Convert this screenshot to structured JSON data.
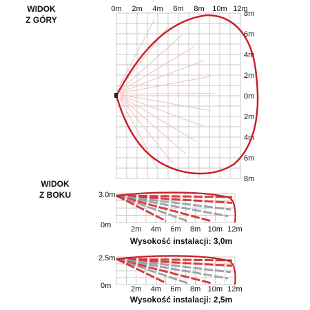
{
  "top_view": {
    "heading_line1": "WIDOK",
    "heading_line2": "Z GÓRY",
    "x_ticks": [
      "0m",
      "2m",
      "4m",
      "6m",
      "8m",
      "10m",
      "12m"
    ],
    "y_ticks": [
      "8m",
      "6m",
      "4m",
      "2m",
      "0m",
      "2m",
      "4m",
      "6m",
      "8m"
    ]
  },
  "side_view": {
    "heading_line1": "WIDOK",
    "heading_line2": "Z BOKU",
    "x_ticks": [
      "2m",
      "4m",
      "6m",
      "8m",
      "10m",
      "12m"
    ],
    "panel1": {
      "top_label": "3.0m",
      "bottom_label": "0m",
      "caption": "Wysokość instalacji: 3,0m",
      "mounting_height_m": 3.0
    },
    "panel2": {
      "top_label": "2.5m",
      "bottom_label": "0m",
      "caption": "Wysokość instalacji: 2,5m",
      "mounting_height_m": 2.5
    }
  },
  "colors": {
    "outline": "#c8202a",
    "beam_strong": "#d42a2a",
    "beam_light": "#f2bcbc",
    "beam_grey": "#9a9aa6",
    "grid": "#b9b9b9"
  }
}
